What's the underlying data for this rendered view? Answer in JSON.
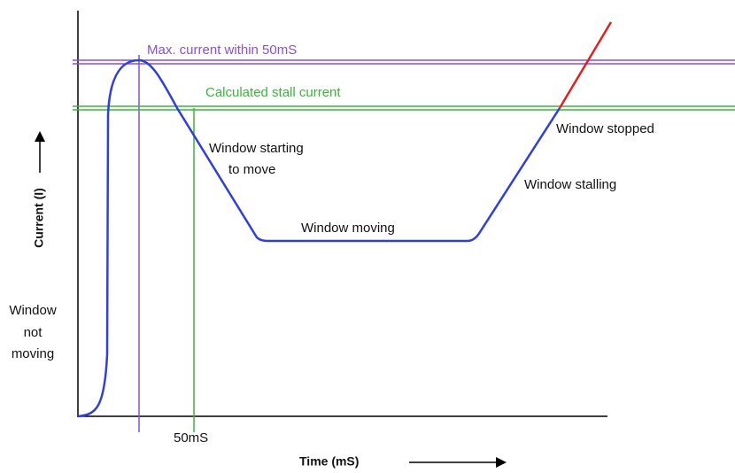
{
  "diagram": {
    "limit_max": "Max. current within 50mS",
    "limit_stall": "Calculated stall current",
    "phase_start": [
      "Window starting",
      "to move"
    ],
    "phase_moving": "Window moving",
    "phase_stalling": "Window stalling",
    "phase_stopped": "Window stopped",
    "phase_rest": [
      "Window",
      "not",
      "moving"
    ],
    "time_marker": "50mS",
    "x_axis_label": "Time (mS)",
    "y_axis_label": "Current (I)"
  }
}
